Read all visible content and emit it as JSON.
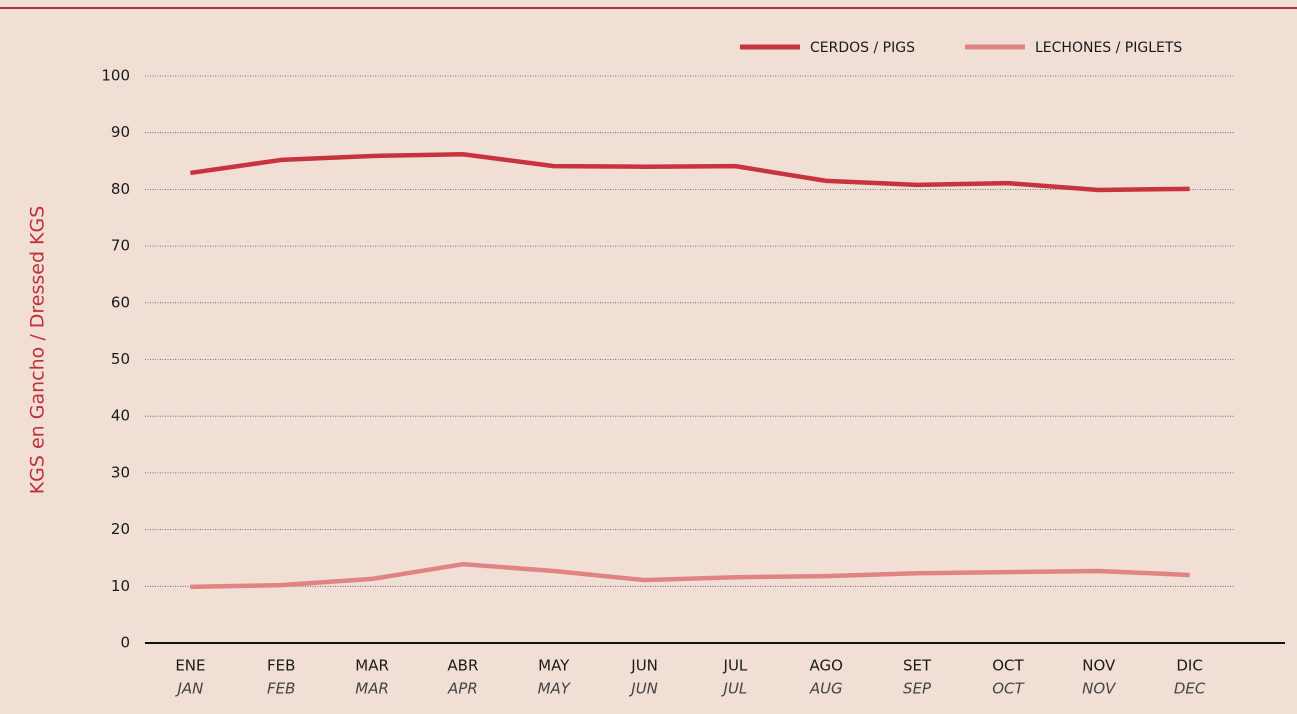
{
  "chart_data": {
    "type": "line",
    "y_label": "KGS en Gancho / Dressed KGS",
    "categories": [
      "ENE",
      "FEB",
      "MAR",
      "ABR",
      "MAY",
      "JUN",
      "JUL",
      "AGO",
      "SET",
      "OCT",
      "NOV",
      "DIC"
    ],
    "categories_en": [
      "JAN",
      "FEB",
      "MAR",
      "APR",
      "MAY",
      "JUN",
      "JUL",
      "AUG",
      "SEP",
      "OCT",
      "NOV",
      "DEC"
    ],
    "series": [
      {
        "name": "CERDOS / PIGS",
        "color": "#c8333f",
        "values": [
          82.9,
          85.2,
          85.9,
          86.2,
          84.1,
          84.0,
          84.1,
          81.5,
          80.8,
          81.1,
          79.9,
          80.1
        ]
      },
      {
        "name": "LECHONES / PIGLETS",
        "color": "#e08383",
        "values": [
          9.9,
          10.2,
          11.3,
          13.9,
          12.7,
          11.1,
          11.6,
          11.8,
          12.3,
          12.5,
          12.7,
          12.0
        ]
      }
    ],
    "ylim": [
      0,
      100
    ],
    "yticks": [
      0,
      10,
      20,
      30,
      40,
      50,
      60,
      70,
      80,
      90,
      100
    ],
    "grid": true,
    "legend": "top-right"
  }
}
